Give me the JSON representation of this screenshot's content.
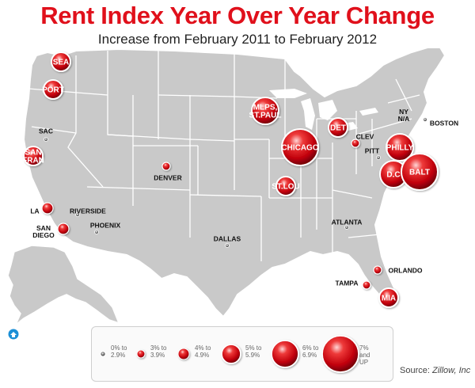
{
  "title": "Rent Index Year Over Year Change",
  "subtitle": "Increase from February 2011 to February 2012",
  "colors": {
    "bubble": "#d4101a",
    "bubble_highlight": "#ffffff",
    "map_land": "#c9c9c9",
    "map_border": "#ffffff",
    "title": "#e0101b",
    "label": "#111111"
  },
  "map_series": [
    {
      "name": "SEA",
      "bin": 3
    },
    {
      "name": "PORT",
      "bin": 3
    },
    {
      "name": "SAC",
      "bin": 0
    },
    {
      "name": "SAN FRAN",
      "bin": 3
    },
    {
      "name": "LA",
      "bin": 2
    },
    {
      "name": "RIVERSIDE",
      "bin": 0
    },
    {
      "name": "SAN DIEGO",
      "bin": 2
    },
    {
      "name": "PHOENIX",
      "bin": 0
    },
    {
      "name": "DENVER",
      "bin": 1
    },
    {
      "name": "DALLAS",
      "bin": 0
    },
    {
      "name": "MLPS, ST.PAUL",
      "bin": 4
    },
    {
      "name": "CHICAGO",
      "bin": 5
    },
    {
      "name": "ST.LOU",
      "bin": 3
    },
    {
      "name": "DET",
      "bin": 3
    },
    {
      "name": "CLEV",
      "bin": 1
    },
    {
      "name": "PITT",
      "bin": 0
    },
    {
      "name": "NY N/A",
      "bin": null
    },
    {
      "name": "BOSTON",
      "bin": 0
    },
    {
      "name": "PHILLY",
      "bin": 4
    },
    {
      "name": "D.C",
      "bin": 4
    },
    {
      "name": "BALT",
      "bin": 5
    },
    {
      "name": "ATLANTA",
      "bin": 0
    },
    {
      "name": "ORLANDO",
      "bin": 1
    },
    {
      "name": "TAMPA",
      "bin": 1
    },
    {
      "name": "MIA",
      "bin": 3
    }
  ],
  "legend": [
    {
      "label": "0% to 2.9%"
    },
    {
      "label": "3% to 3.9%"
    },
    {
      "label": "4% to 4.9%"
    },
    {
      "label": "5% to 5.9%"
    },
    {
      "label": "6% to 6.9%"
    },
    {
      "label": "7% and UP"
    }
  ],
  "source": {
    "prefix": "Source:",
    "name": "Zillow, Inc"
  }
}
